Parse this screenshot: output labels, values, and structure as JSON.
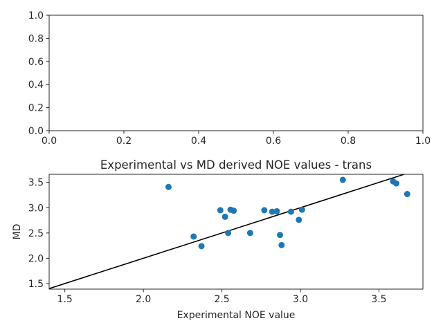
{
  "chart_data": [
    {
      "type": "scatter",
      "title": "",
      "xlabel": "",
      "ylabel": "",
      "xlim": [
        0,
        1
      ],
      "ylim": [
        0,
        1
      ],
      "xticks": [
        "0.0",
        "0.2",
        "0.4",
        "0.6",
        "0.8",
        "1.0"
      ],
      "yticks": [
        "0.0",
        "0.2",
        "0.4",
        "0.6",
        "0.8",
        "1.0"
      ],
      "points": []
    },
    {
      "type": "scatter",
      "title": "Experimental vs MD derived NOE values - trans",
      "xlabel": "Experimental NOE value",
      "ylabel": "MD",
      "xlim": [
        1.4,
        3.78
      ],
      "ylim": [
        1.39,
        3.66
      ],
      "xticks": [
        "1.5",
        "2.0",
        "2.5",
        "3.0",
        "3.5"
      ],
      "yticks": [
        "1.5",
        "2.0",
        "2.5",
        "3.0",
        "3.5"
      ],
      "grid": false,
      "point_color": "#1f77b4",
      "line_color": "#000000",
      "reference_line": [
        [
          1.4,
          1.4
        ],
        [
          3.78,
          3.78
        ]
      ],
      "points": [
        {
          "x": 2.16,
          "y": 3.41
        },
        {
          "x": 2.32,
          "y": 2.43
        },
        {
          "x": 2.37,
          "y": 2.24
        },
        {
          "x": 2.49,
          "y": 2.95
        },
        {
          "x": 2.52,
          "y": 2.82
        },
        {
          "x": 2.54,
          "y": 2.5
        },
        {
          "x": 2.555,
          "y": 2.96
        },
        {
          "x": 2.575,
          "y": 2.94
        },
        {
          "x": 2.68,
          "y": 2.5
        },
        {
          "x": 2.77,
          "y": 2.95
        },
        {
          "x": 2.82,
          "y": 2.92
        },
        {
          "x": 2.85,
          "y": 2.93
        },
        {
          "x": 2.87,
          "y": 2.46
        },
        {
          "x": 2.88,
          "y": 2.26
        },
        {
          "x": 2.94,
          "y": 2.92
        },
        {
          "x": 2.99,
          "y": 2.76
        },
        {
          "x": 3.01,
          "y": 2.96
        },
        {
          "x": 3.27,
          "y": 3.55
        },
        {
          "x": 3.59,
          "y": 3.52
        },
        {
          "x": 3.61,
          "y": 3.48
        },
        {
          "x": 3.68,
          "y": 3.27
        }
      ]
    }
  ]
}
